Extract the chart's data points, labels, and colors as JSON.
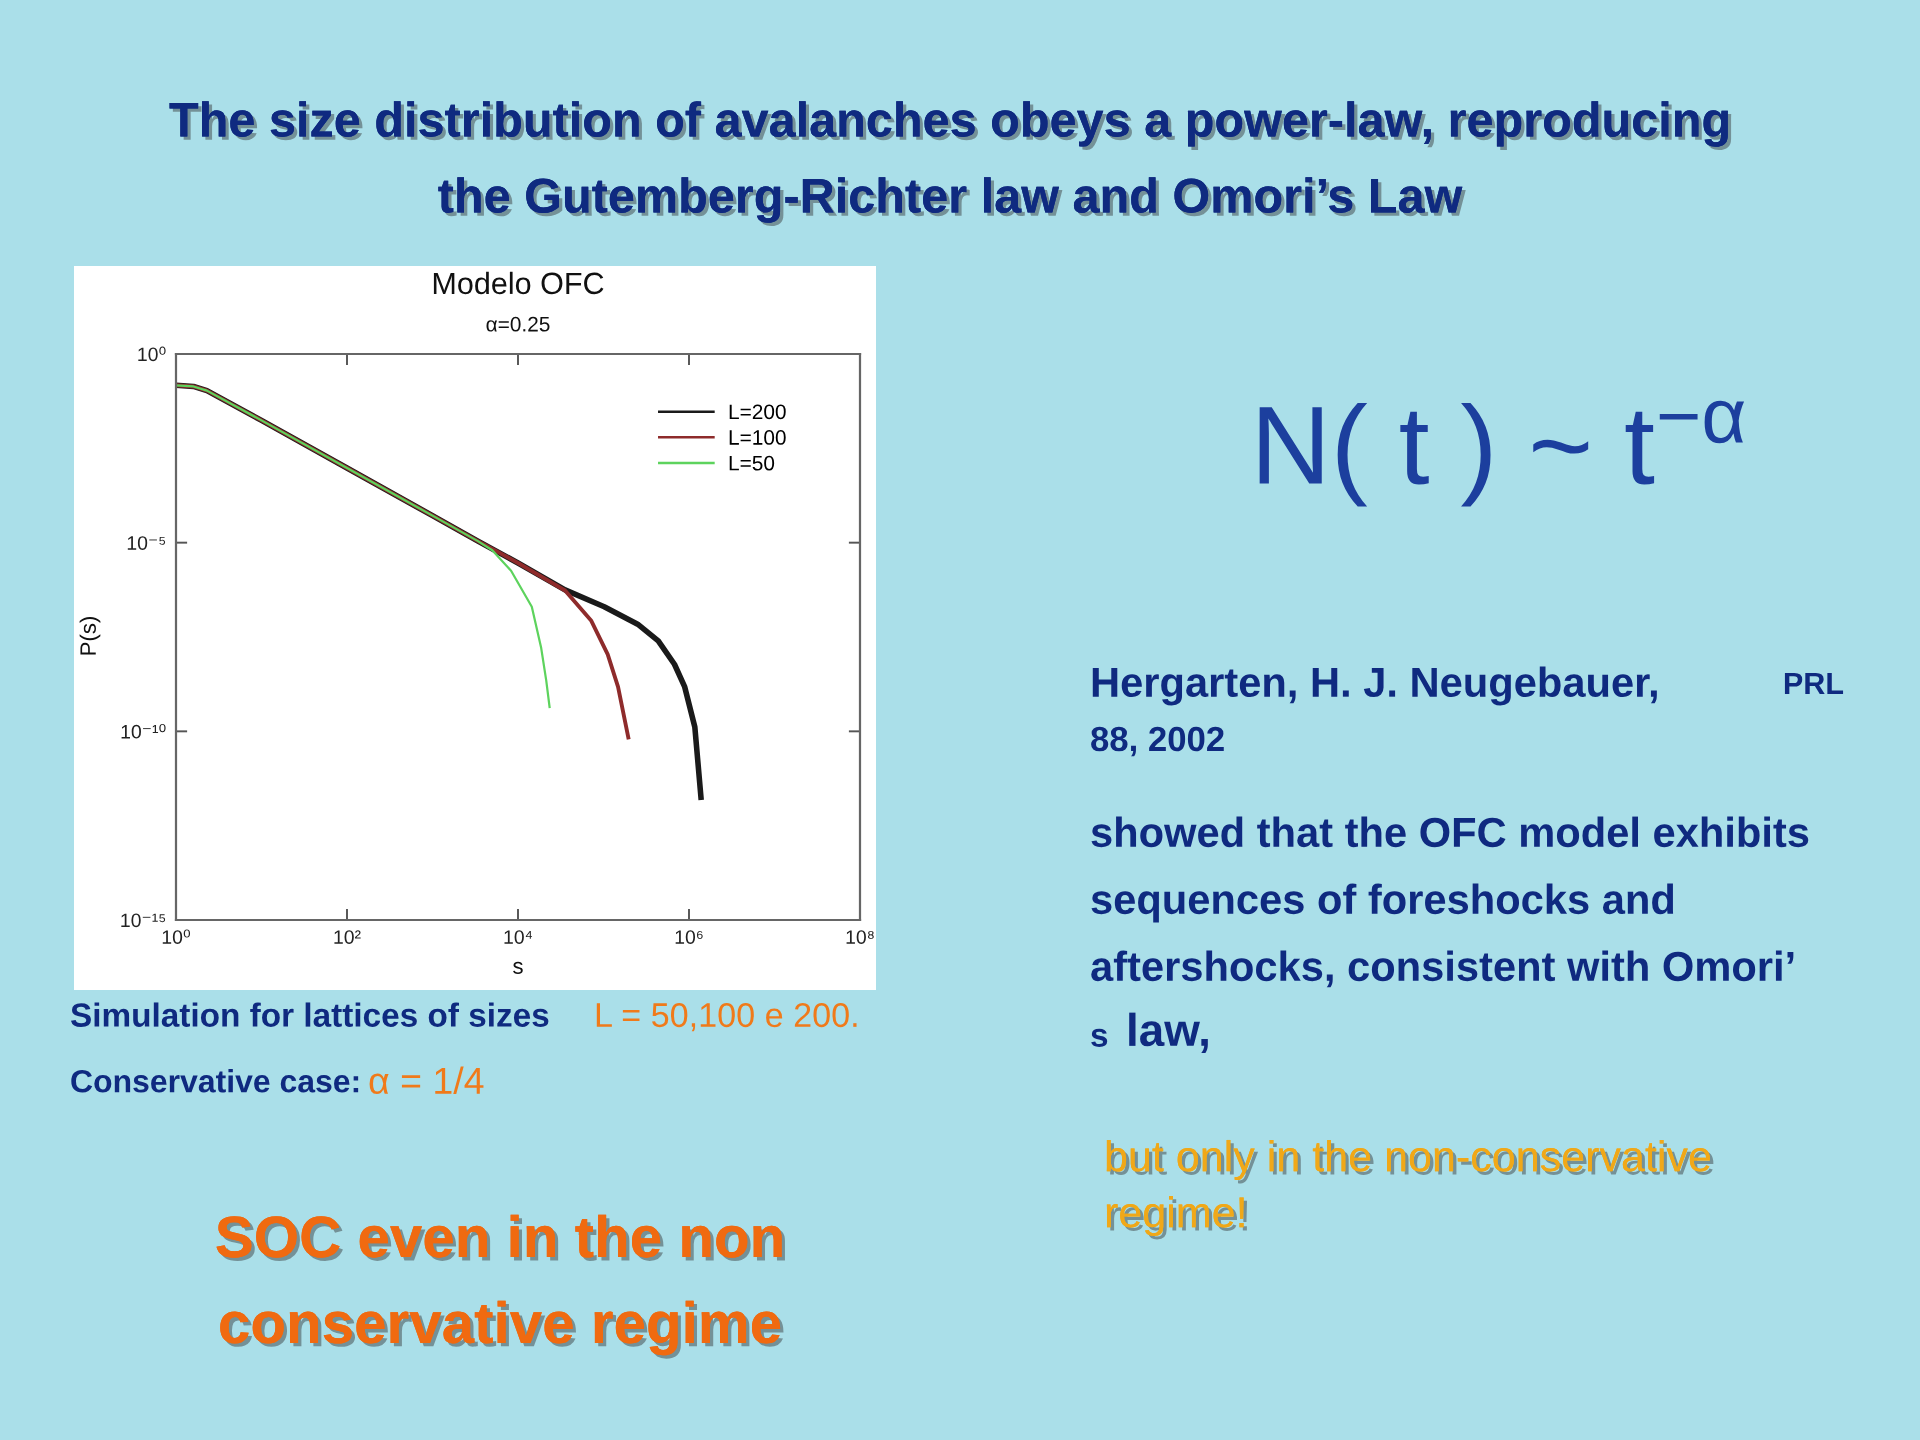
{
  "chart_data": {
    "type": "line",
    "title": "Modelo OFC",
    "subtitle": "α=0.25",
    "xlabel": "s",
    "ylabel": "P(s)",
    "log": "xy",
    "xlim": [
      1,
      100000000
    ],
    "ylim": [
      1e-15,
      1
    ],
    "xticks": [
      {
        "value": 1,
        "label": "10⁰"
      },
      {
        "value": 100,
        "label": "10²"
      },
      {
        "value": 10000,
        "label": "10⁴"
      },
      {
        "value": 1000000,
        "label": "10⁶"
      },
      {
        "value": 100000000,
        "label": "10⁸"
      }
    ],
    "yticks": [
      {
        "value": 1e-15,
        "label": "10⁻¹⁵"
      },
      {
        "value": 1e-10,
        "label": "10⁻¹⁰"
      },
      {
        "value": 1e-05,
        "label": "10⁻⁵"
      },
      {
        "value": 1,
        "label": "10⁰"
      }
    ],
    "grid": false,
    "legend": "top right",
    "line_style": "solid",
    "series": [
      {
        "name": "L=200",
        "color": "#1a1a1a",
        "x": [
          1,
          1.6,
          2.3,
          10,
          100,
          1000,
          3400,
          10000,
          35500,
          102000,
          251000,
          437000,
          676000,
          891000,
          1170000,
          1380000
        ],
        "values": [
          0.148,
          0.138,
          0.107,
          0.0174,
          0.00095,
          5.2e-05,
          1.1e-05,
          2.9e-06,
          5.6e-07,
          2e-07,
          6.9e-08,
          2.5e-08,
          6e-09,
          1.5e-09,
          1.3e-10,
          1.8e-12
        ]
      },
      {
        "name": "L=100",
        "color": "#8e2b2b",
        "x": [
          1,
          1.6,
          2.3,
          10,
          100,
          1000,
          3400,
          10000,
          35500,
          72000,
          112000,
          148000,
          195000
        ],
        "values": [
          0.148,
          0.138,
          0.107,
          0.0174,
          0.00095,
          5.2e-05,
          1.1e-05,
          2.9e-06,
          5.4e-07,
          8.5e-08,
          1.1e-08,
          1.5e-09,
          6.9e-11
        ]
      },
      {
        "name": "L=50",
        "color": "#5dd35d",
        "x": [
          1,
          1.6,
          2.3,
          10,
          100,
          1000,
          3400,
          5000,
          8300,
          14500,
          18600,
          21400,
          23400
        ],
        "values": [
          0.148,
          0.138,
          0.107,
          0.0174,
          0.00095,
          5.2e-05,
          1.1e-05,
          6.3e-06,
          1.8e-06,
          2e-07,
          1.7e-08,
          2.2e-09,
          4.4e-10
        ]
      }
    ],
    "annotations": [
      "The size distribution of avalanches obeys a power-law, reproducing\nthe Gutemberg-Richter law and Omori’s Law",
      "N( t ) ~ t$^{−α}$",
      "Hergarten, H. J. Neugebauer,",
      "PRL",
      "88, 2002",
      "showed that the OFC model exhibits\nsequences of foreshocks and\naftershocks, consistent with Omori’",
      "s",
      "law,",
      "but only in the non-conservative\nregime!",
      "Simulation for lattices of sizes",
      "L = 50,100 e 200.",
      "Conservative case:",
      "α = 1/4",
      "SOC even in the non\nconservative regime"
    ]
  }
}
